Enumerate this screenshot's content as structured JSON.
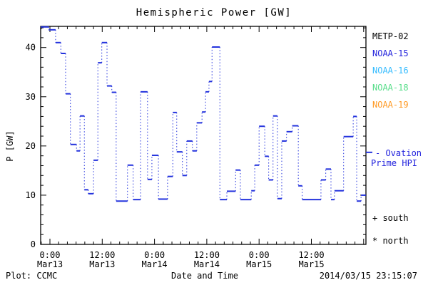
{
  "title": "Hemispheric Power [GW]",
  "footer": {
    "plot_credit": "Plot: CCMC",
    "xlabel": "Date and Time",
    "timestamp": "2014/03/15 23:15:07"
  },
  "legend": {
    "satellites": [
      {
        "label": "METP-02",
        "color": "#000000"
      },
      {
        "label": "NOAA-15",
        "color": "#2222dd"
      },
      {
        "label": "NOAA-16",
        "color": "#33bbff"
      },
      {
        "label": "NOAA-18",
        "color": "#55dd88"
      },
      {
        "label": "NOAA-19",
        "color": "#ff9922"
      }
    ],
    "model": {
      "line1": "- Ovation",
      "line2": "Prime HPI",
      "color": "#2222dd"
    },
    "markers": [
      {
        "label": "+ south"
      },
      {
        "label": "* north"
      }
    ]
  },
  "chart_data": {
    "type": "line",
    "subtype": "step-with-dotted-connectors",
    "title": "Hemispheric Power [GW]",
    "xlabel": "Date and Time",
    "ylabel": "P [GW]",
    "x_unit": "hours since 2014-03-13 00:00 UT",
    "xlim": [
      -2.13,
      72.5
    ],
    "ylim": [
      0,
      44.3
    ],
    "grid": false,
    "legend_position": "right",
    "y_major_ticks": [
      0,
      10,
      20,
      30,
      40
    ],
    "y_minor_step": 2,
    "x_major_ticks": [
      0,
      12,
      24,
      36,
      48,
      60,
      72
    ],
    "x_minor_step": 2,
    "x_tick_labels": [
      {
        "hour": 0,
        "line1": "0:00",
        "line2": "Mar13"
      },
      {
        "hour": 12,
        "line1": "12:00",
        "line2": "Mar13"
      },
      {
        "hour": 24,
        "line1": "0:00",
        "line2": "Mar14"
      },
      {
        "hour": 36,
        "line1": "12:00",
        "line2": "Mar14"
      },
      {
        "hour": 48,
        "line1": "0:00",
        "line2": "Mar15"
      },
      {
        "hour": 60,
        "line1": "12:00",
        "line2": "Mar15"
      }
    ],
    "right_axis_marker_gw": 18.7,
    "series": [
      {
        "name": "Ovation Prime HPI",
        "color": "#2433dd",
        "steps_t0_t1_gw": [
          [
            -2.1,
            -0.3,
            44.2
          ],
          [
            -0.3,
            1.3,
            43.6
          ],
          [
            1.3,
            2.5,
            41.0
          ],
          [
            2.5,
            3.6,
            38.8
          ],
          [
            3.6,
            4.7,
            30.6
          ],
          [
            4.7,
            6.1,
            20.3
          ],
          [
            6.1,
            6.9,
            19.0
          ],
          [
            6.9,
            7.9,
            26.1
          ],
          [
            7.9,
            8.8,
            11.1
          ],
          [
            8.8,
            10.0,
            10.3
          ],
          [
            10.0,
            11.0,
            17.1
          ],
          [
            11.0,
            11.9,
            36.9
          ],
          [
            11.9,
            13.1,
            41.0
          ],
          [
            13.1,
            14.2,
            32.2
          ],
          [
            14.2,
            15.2,
            30.9
          ],
          [
            15.2,
            17.8,
            8.8
          ],
          [
            17.8,
            19.1,
            16.1
          ],
          [
            19.1,
            20.8,
            9.1
          ],
          [
            20.8,
            22.4,
            31.0
          ],
          [
            22.4,
            23.4,
            13.2
          ],
          [
            23.4,
            24.9,
            18.1
          ],
          [
            24.9,
            27.0,
            9.2
          ],
          [
            27.0,
            28.2,
            13.8
          ],
          [
            28.2,
            29.1,
            26.8
          ],
          [
            29.1,
            30.4,
            18.8
          ],
          [
            30.4,
            31.4,
            14.0
          ],
          [
            31.4,
            32.7,
            21.0
          ],
          [
            32.7,
            33.7,
            19.0
          ],
          [
            33.7,
            34.9,
            24.7
          ],
          [
            34.9,
            35.7,
            26.9
          ],
          [
            35.7,
            36.5,
            31.0
          ],
          [
            36.5,
            37.2,
            33.1
          ],
          [
            37.2,
            39.0,
            40.1
          ],
          [
            39.0,
            40.6,
            9.1
          ],
          [
            40.6,
            42.6,
            10.8
          ],
          [
            42.6,
            43.7,
            15.1
          ],
          [
            43.7,
            46.2,
            9.1
          ],
          [
            46.2,
            47.0,
            10.9
          ],
          [
            47.0,
            48.0,
            16.1
          ],
          [
            48.0,
            49.3,
            24.0
          ],
          [
            49.3,
            50.2,
            17.9
          ],
          [
            50.2,
            51.2,
            13.1
          ],
          [
            51.2,
            52.2,
            26.1
          ],
          [
            52.2,
            53.2,
            9.3
          ],
          [
            53.2,
            54.3,
            21.0
          ],
          [
            54.3,
            55.6,
            22.9
          ],
          [
            55.6,
            57.0,
            24.1
          ],
          [
            57.0,
            57.9,
            11.9
          ],
          [
            57.9,
            62.2,
            9.1
          ],
          [
            62.2,
            63.3,
            13.1
          ],
          [
            63.3,
            64.5,
            15.3
          ],
          [
            64.5,
            65.3,
            9.1
          ],
          [
            65.3,
            67.4,
            10.9
          ],
          [
            67.4,
            69.6,
            21.9
          ],
          [
            69.6,
            70.4,
            26.0
          ],
          [
            70.4,
            71.4,
            8.8
          ],
          [
            71.4,
            72.5,
            10.0
          ]
        ]
      }
    ]
  }
}
